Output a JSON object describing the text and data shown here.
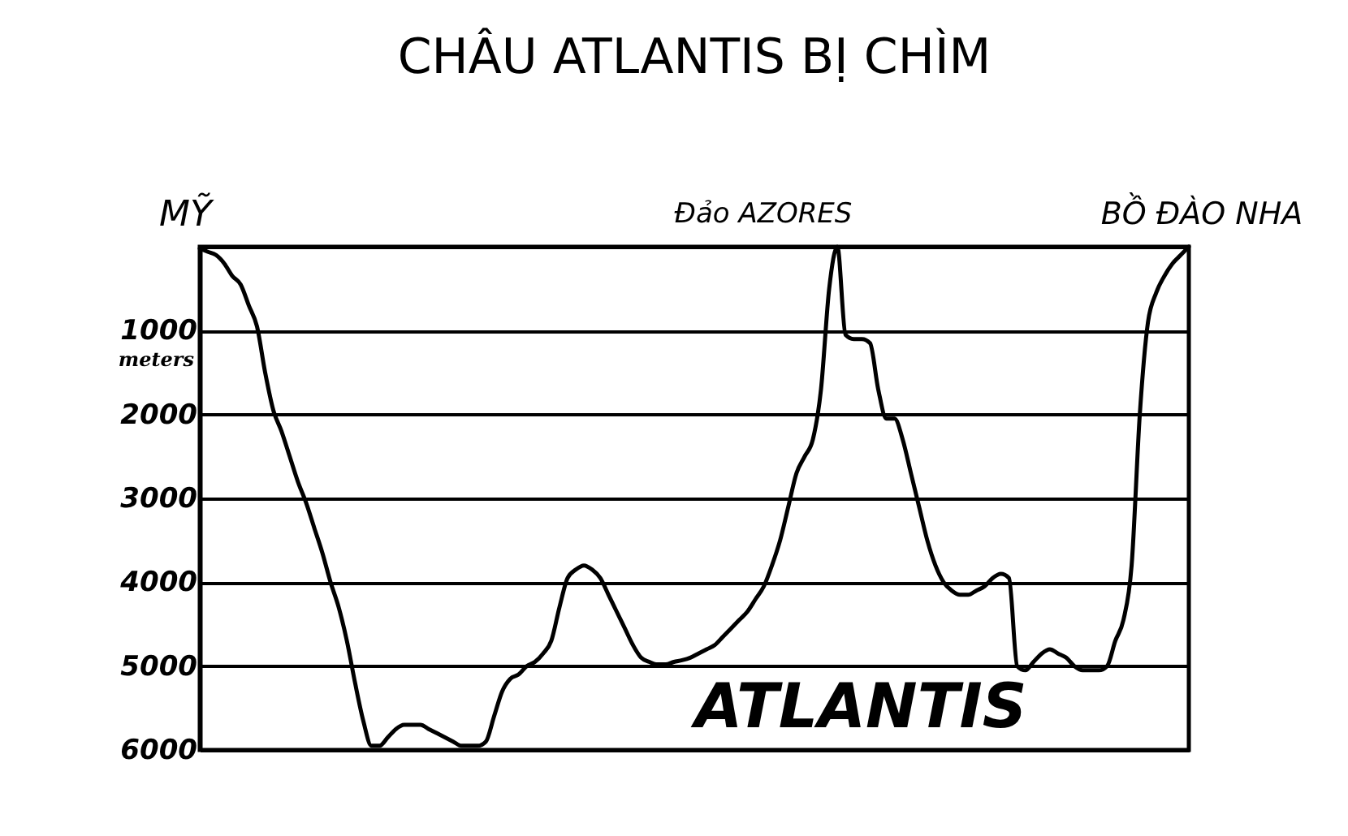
{
  "chart_data": {
    "type": "line",
    "title": "CHÂU ATLANTIS BỊ CHÌM",
    "ylabel": "meters",
    "annotations": [
      "MỸ",
      "Đảo AZORES",
      "BỒ ĐÀO NHA",
      "ATLANTIS"
    ],
    "categories": [
      null,
      null,
      null,
      null,
      null,
      null,
      null,
      null,
      null,
      null,
      null,
      null,
      null,
      null,
      null,
      null,
      null,
      null,
      null,
      null,
      null,
      null,
      null,
      null,
      null,
      null,
      null,
      null,
      null,
      null,
      null,
      null,
      null,
      null,
      null,
      null,
      null,
      null,
      null,
      null,
      null,
      null,
      null,
      null,
      null,
      null,
      null,
      null,
      null,
      null,
      null,
      null,
      null,
      null,
      null,
      null,
      null,
      null,
      null,
      null,
      null,
      null,
      null,
      null,
      null,
      null,
      null,
      null,
      null,
      null,
      null,
      null,
      null,
      null,
      null,
      null,
      null,
      null,
      null,
      null,
      null,
      null,
      null,
      null,
      null,
      null,
      null,
      null,
      null,
      null,
      null,
      null,
      null,
      null,
      null,
      null,
      null,
      null,
      null,
      null,
      null,
      null,
      null,
      null,
      null,
      null,
      null,
      null,
      null,
      null,
      null,
      null,
      null,
      null,
      null,
      null,
      null,
      null,
      null,
      null,
      null,
      null
    ],
    "series": [
      {
        "color": "#000000",
        "values": [
          20,
          60,
          100,
          200,
          350,
          450,
          700,
          950,
          1500,
          1950,
          2200,
          2500,
          2800,
          3050,
          3350,
          3650,
          4000,
          4300,
          4700,
          5200,
          5650,
          5950,
          5950,
          5850,
          5750,
          5700,
          5700,
          5700,
          5750,
          5800,
          5850,
          5900,
          5950,
          5950,
          5950,
          5900,
          5600,
          5300,
          5150,
          5100,
          5000,
          4950,
          4850,
          4700,
          4300,
          3950,
          3850,
          3800,
          3850,
          3950,
          4150,
          4350,
          4550,
          4750,
          4900,
          4950,
          4980,
          4980,
          4950,
          4930,
          4900,
          4850,
          4800,
          4750,
          4650,
          4550,
          4450,
          4350,
          4200,
          4050,
          3800,
          3500,
          3100,
          2700,
          2500,
          2300,
          1700,
          500,
          0,
          1050,
          1100,
          1100,
          1150,
          1700,
          2050,
          2050,
          2300,
          2700,
          3100,
          3500,
          3800,
          4000,
          4100,
          4150,
          4150,
          4100,
          4050,
          3950,
          3900,
          3950,
          5000,
          5050,
          4950,
          4850,
          4800,
          4850,
          4900,
          5000,
          5050,
          5050,
          5050,
          5000,
          4700,
          4450,
          3800,
          2000,
          900,
          550,
          350,
          200,
          100,
          0
        ]
      }
    ],
    "ylim": [
      6000,
      0
    ],
    "yticks": [
      {
        "value": 0,
        "label": null
      },
      1000,
      2000,
      3000,
      4000,
      5000,
      6000
    ],
    "grid": "y",
    "marker": "none",
    "line_style": "solid",
    "tick_labels": "y"
  }
}
